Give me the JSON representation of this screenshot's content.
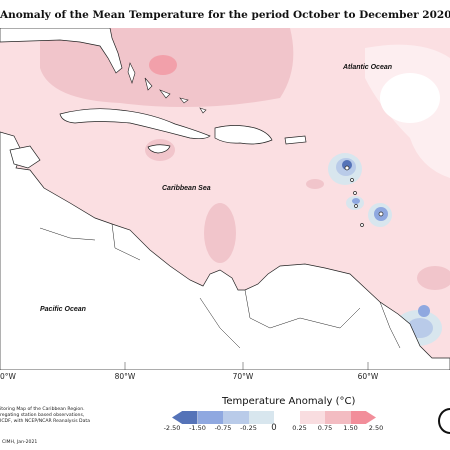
{
  "title": "Anomaly of the Mean Temperature for the period October to December 2020",
  "map": {
    "labels": {
      "atlantic": "Atlantic Ocean",
      "caribbean": "Caribbean Sea",
      "pacific": "Pacific Ocean"
    },
    "longitude_labels": [
      "0°W",
      "80°W",
      "70°W",
      "60°W"
    ]
  },
  "legend": {
    "title": "Temperature Anomaly (°C)",
    "ticks": [
      "-2.50",
      "-1.50",
      "-0.75",
      "-0.25",
      "0",
      "0.25",
      "0.75",
      "1.50",
      "2.50"
    ],
    "colors": [
      "#5573b8",
      "#8fa8e0",
      "#b9cbe9",
      "#d8e6ee",
      "#ffffff",
      "#f9dde0",
      "#f3bcc2",
      "#f28e9a"
    ]
  },
  "footnote": {
    "lines": [
      "itoring Map of the Caribbean Region.",
      "regating station based observations,",
      "ICDF, with NCEP/NCAR Reanalysis Data"
    ],
    "credit": "CIMH, Jan-2021"
  }
}
